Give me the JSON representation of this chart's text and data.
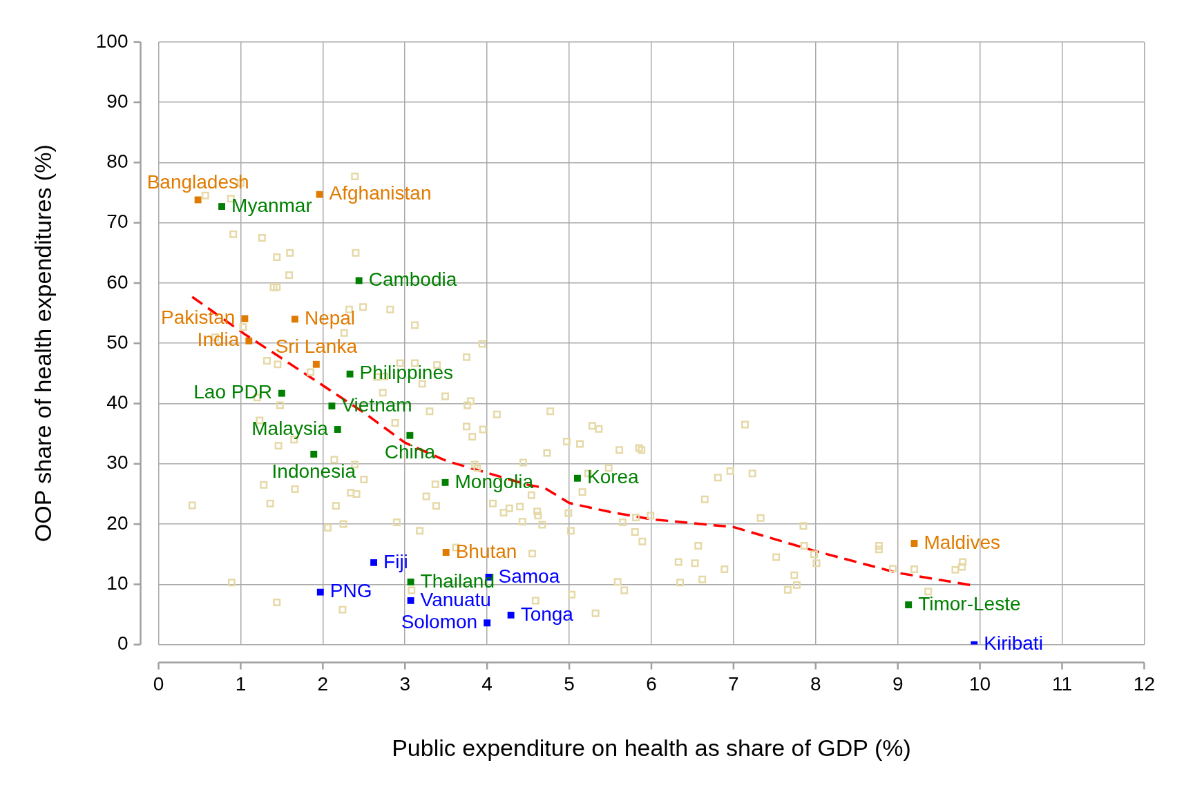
{
  "chart_data": {
    "type": "scatter",
    "xlabel": "Public expenditure on health as share of GDP (%)",
    "ylabel": "OOP share of health expenditures (%)",
    "xlim": [
      0,
      12
    ],
    "ylim": [
      0,
      100
    ],
    "xticks": [
      0,
      1,
      2,
      3,
      4,
      5,
      6,
      7,
      8,
      9,
      10,
      11,
      12
    ],
    "yticks": [
      0,
      10,
      20,
      30,
      40,
      50,
      60,
      70,
      80,
      90,
      100
    ],
    "grid": true,
    "marker": "square",
    "series": [
      {
        "color": "#e6d9a8",
        "x": [
          0.57,
          0.88,
          1.0,
          2.39,
          0.91,
          1.26,
          1.6,
          1.44,
          2.4,
          1.59,
          1.4,
          1.44,
          2.32,
          2.49,
          2.82,
          1.03,
          2.26,
          3.12,
          3.94,
          0.69,
          1.32,
          1.45,
          1.85,
          2.94,
          3.12,
          3.39,
          3.75,
          2.66,
          2.75,
          3.21,
          3.49,
          2.73,
          1.2,
          1.48,
          3.76,
          3.8,
          3.3,
          4.12,
          4.77,
          2.88,
          3.75,
          3.95,
          3.82,
          1.23,
          1.46,
          1.65,
          2.14,
          2.39,
          2.5,
          2.34,
          2.41,
          1.28,
          1.66,
          1.36,
          2.16,
          0.41,
          2.06,
          2.25,
          2.9,
          3.18,
          3.26,
          3.37,
          3.38,
          3.85,
          3.88,
          4.07,
          4.2,
          4.27,
          4.4,
          4.44,
          4.54,
          4.43,
          4.61,
          4.62,
          4.67,
          4.73,
          4.97,
          5.13,
          5.28,
          5.36,
          4.99,
          5.02,
          5.16,
          5.23,
          5.48,
          5.61,
          5.85,
          5.88,
          5.65,
          5.81,
          5.8,
          5.89,
          5.99,
          5.59,
          5.67,
          5.32,
          5.03,
          4.59,
          4.55,
          3.62,
          3.08,
          2.24,
          1.44,
          0.89,
          6.33,
          6.35,
          6.53,
          6.57,
          6.62,
          6.65,
          6.81,
          6.96,
          6.89,
          7.14,
          7.23,
          7.33,
          7.52,
          7.66,
          7.74,
          7.77,
          7.86,
          7.85,
          7.98,
          8.01,
          8.77,
          8.77,
          8.94,
          9.2,
          9.37,
          9.7,
          9.78,
          9.79
        ],
        "values": [
          74.5,
          74.0,
          76.6,
          77.7,
          68.1,
          67.5,
          65.0,
          64.3,
          65.0,
          61.3,
          59.3,
          59.3,
          55.6,
          56.0,
          55.6,
          52.7,
          51.7,
          53.0,
          49.9,
          51.0,
          47.1,
          46.5,
          45.2,
          46.7,
          46.7,
          46.4,
          47.7,
          44.4,
          44.5,
          43.3,
          41.2,
          41.8,
          41.0,
          39.7,
          39.7,
          40.4,
          38.7,
          38.2,
          38.7,
          36.8,
          36.2,
          35.7,
          34.5,
          37.2,
          33.0,
          34.0,
          30.7,
          29.9,
          27.4,
          25.2,
          25.0,
          26.5,
          25.8,
          23.4,
          23.0,
          23.1,
          19.4,
          20.0,
          20.3,
          18.9,
          24.6,
          26.6,
          23.0,
          29.9,
          29.3,
          23.4,
          21.9,
          22.6,
          22.9,
          30.2,
          24.8,
          20.4,
          22.1,
          21.4,
          19.9,
          31.8,
          33.7,
          33.3,
          36.3,
          35.8,
          21.8,
          18.9,
          25.3,
          28.4,
          29.3,
          32.3,
          32.6,
          32.3,
          20.3,
          21.1,
          18.7,
          17.1,
          21.4,
          10.4,
          9.0,
          5.2,
          8.3,
          7.3,
          15.1,
          16.1,
          9.0,
          5.8,
          7.0,
          10.3,
          13.7,
          10.3,
          13.5,
          16.4,
          10.8,
          24.1,
          27.7,
          28.8,
          12.5,
          36.5,
          28.4,
          21.0,
          14.5,
          9.1,
          11.5,
          9.9,
          16.4,
          19.7,
          15.0,
          13.5,
          16.4,
          15.8,
          12.6,
          12.5,
          8.8,
          12.4,
          12.9,
          13.7
        ]
      },
      {
        "type": "line",
        "color": "#ff0000",
        "line_style": "dashed",
        "marker": "none",
        "x": [
          0.41,
          1.05,
          1.5,
          2.0,
          2.5,
          3.0,
          3.5,
          4.0,
          4.5,
          4.7,
          5.0,
          5.5,
          6.0,
          7.0,
          8.0,
          9.0,
          9.88
        ],
        "values": [
          57.7,
          51.5,
          47.5,
          43.0,
          38.5,
          33.5,
          30.5,
          28.5,
          26.5,
          26.0,
          23.5,
          22.0,
          20.8,
          19.5,
          15.5,
          11.9,
          9.9
        ]
      },
      {
        "name": "Bangladesh",
        "color": "#e07b00",
        "x": [
          0.48
        ],
        "values": [
          73.8
        ]
      },
      {
        "name": "Myanmar",
        "color": "#008000",
        "x": [
          0.77
        ],
        "values": [
          72.7
        ]
      },
      {
        "name": "Afghanistan",
        "color": "#e07b00",
        "x": [
          1.96
        ],
        "values": [
          74.7
        ]
      },
      {
        "name": "Cambodia",
        "color": "#008000",
        "x": [
          2.44
        ],
        "values": [
          60.4
        ]
      },
      {
        "name": "Pakistan",
        "color": "#e07b00",
        "x": [
          1.05
        ],
        "values": [
          54.1
        ]
      },
      {
        "name": "Nepal",
        "color": "#e07b00",
        "x": [
          1.66
        ],
        "values": [
          54.0
        ]
      },
      {
        "name": "India",
        "color": "#e07b00",
        "x": [
          1.1
        ],
        "values": [
          50.4
        ]
      },
      {
        "name": "Sri Lanka",
        "color": "#e07b00",
        "x": [
          1.92
        ],
        "values": [
          46.5
        ]
      },
      {
        "name": "Philippines",
        "color": "#008000",
        "x": [
          2.33
        ],
        "values": [
          44.9
        ]
      },
      {
        "name": "Lao PDR",
        "color": "#008000",
        "x": [
          1.5
        ],
        "values": [
          41.7
        ]
      },
      {
        "name": "Vietnam",
        "color": "#008000",
        "x": [
          2.11
        ],
        "values": [
          39.6
        ]
      },
      {
        "name": "Malaysia",
        "color": "#008000",
        "x": [
          2.18
        ],
        "values": [
          35.7
        ]
      },
      {
        "name": "China",
        "color": "#008000",
        "x": [
          3.06
        ],
        "values": [
          34.7
        ]
      },
      {
        "name": "Indonesia",
        "color": "#008000",
        "x": [
          1.89
        ],
        "values": [
          31.6
        ]
      },
      {
        "name": "Mongolia",
        "color": "#008000",
        "x": [
          3.49
        ],
        "values": [
          26.9
        ]
      },
      {
        "name": "Korea",
        "color": "#008000",
        "x": [
          5.1
        ],
        "values": [
          27.6
        ]
      },
      {
        "name": "Bhutan",
        "color": "#e07b00",
        "x": [
          3.5
        ],
        "values": [
          15.3
        ]
      },
      {
        "name": "Fiji",
        "color": "#0000ff",
        "x": [
          2.62
        ],
        "values": [
          13.6
        ]
      },
      {
        "name": "Thailand",
        "color": "#008000",
        "x": [
          3.07
        ],
        "values": [
          10.4
        ]
      },
      {
        "name": "Samoa",
        "color": "#0000ff",
        "x": [
          4.02
        ],
        "values": [
          11.2
        ]
      },
      {
        "name": "PNG",
        "color": "#0000ff",
        "x": [
          1.97
        ],
        "values": [
          8.7
        ]
      },
      {
        "name": "Vanuatu",
        "color": "#0000ff",
        "x": [
          3.07
        ],
        "values": [
          7.3
        ]
      },
      {
        "name": "Solomon",
        "color": "#0000ff",
        "x": [
          4.0
        ],
        "values": [
          3.6
        ]
      },
      {
        "name": "Tonga",
        "color": "#0000ff",
        "x": [
          4.29
        ],
        "values": [
          4.9
        ]
      },
      {
        "name": "Maldives",
        "color": "#e07b00",
        "x": [
          9.2
        ],
        "values": [
          16.8
        ]
      },
      {
        "name": "Timor-Leste",
        "color": "#008000",
        "x": [
          9.13
        ],
        "values": [
          6.6
        ]
      },
      {
        "name": "Kiribati",
        "color": "#0000ff",
        "x": [
          9.93
        ],
        "values": [
          0.0
        ]
      }
    ]
  }
}
